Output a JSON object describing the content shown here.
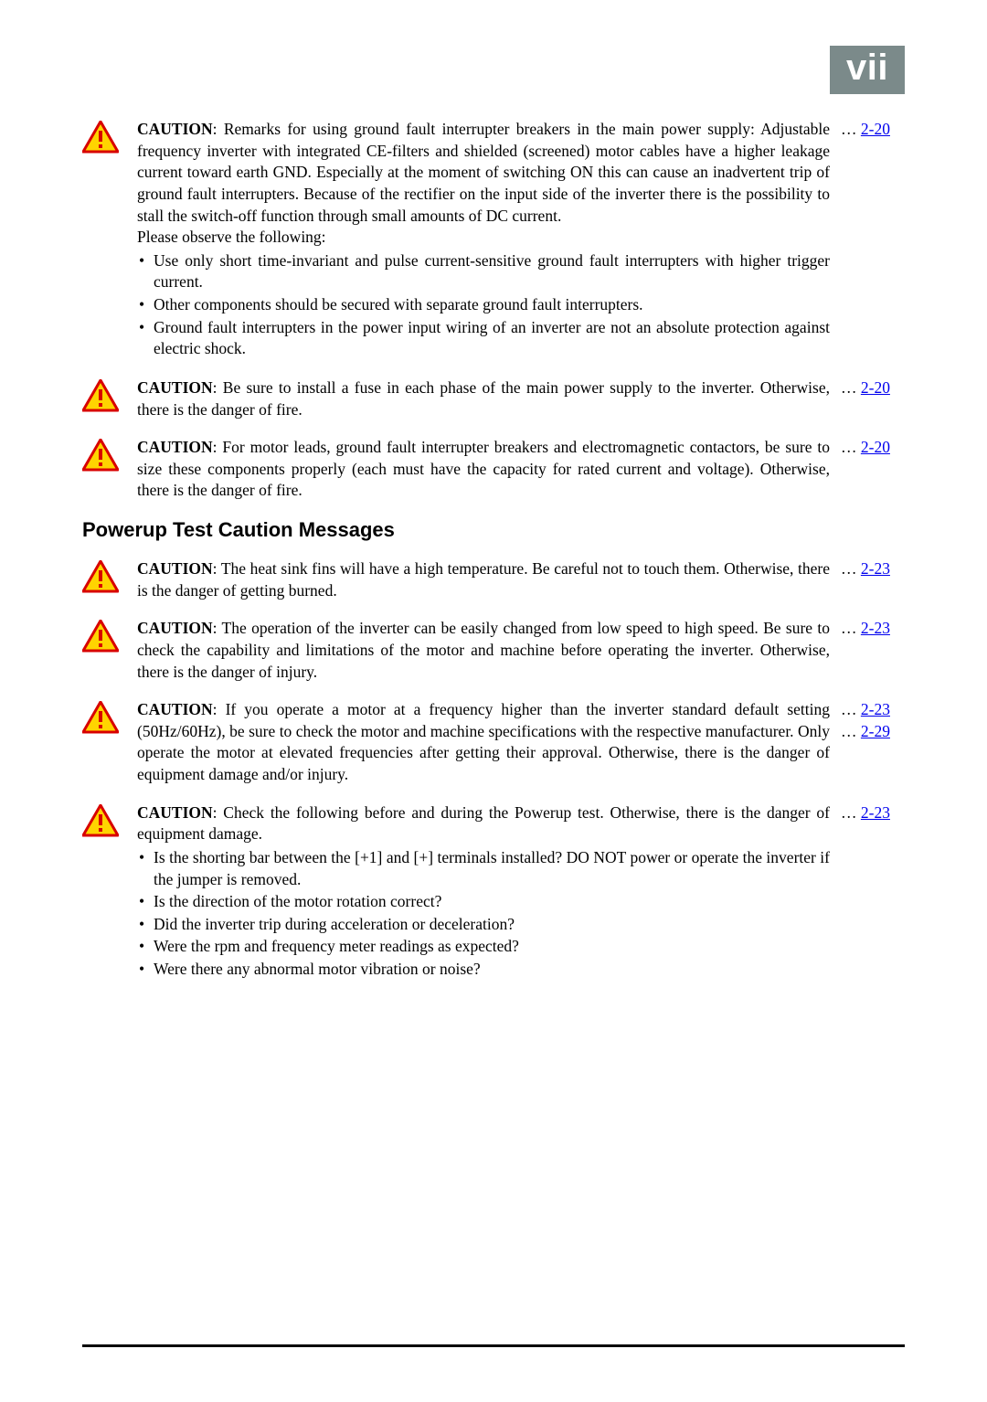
{
  "page_label": "vii",
  "link_color": "#0000ee",
  "tab_bg": "#7b8a8a",
  "cautions_a": [
    {
      "lead": "CAUTION",
      "body": ": Remarks for using ground fault interrupter breakers in the main power supply: Adjustable frequency inverter with integrated CE-filters and shielded (screened) motor cables have a higher leakage current toward earth GND. Especially at the moment of switching ON this can cause an inadvertent trip of ground fault interrupters. Because of the rectifier on the input side of the inverter there is the possibility to stall the switch-off function through small amounts of DC current.",
      "follow": "Please observe the following:",
      "bullets": [
        "Use only short time-invariant and pulse current-sensitive ground fault interrupters with higher trigger current.",
        "Other components should be secured with separate ground fault interrupters.",
        "Ground fault interrupters in the power input wiring of an inverter are not an absolute protection against electric shock."
      ],
      "refs": [
        "2-20"
      ]
    },
    {
      "lead": "CAUTION",
      "body": ": Be sure to install a fuse in each phase of the main power supply to the inverter. Otherwise, there is the danger of fire.",
      "refs": [
        "2-20"
      ]
    },
    {
      "lead": "CAUTION",
      "body": ": For motor leads, ground fault interrupter breakers and electromagnetic contactors, be sure to size these components properly (each must have the capacity for rated current and voltage). Otherwise, there is the danger of fire.",
      "refs": [
        "2-20"
      ]
    }
  ],
  "heading": "Powerup Test Caution Messages",
  "cautions_b": [
    {
      "lead": "CAUTION",
      "body": ": The heat sink fins will have a high temperature. Be careful not to touch them. Otherwise, there is the danger of getting burned.",
      "refs": [
        "2-23"
      ]
    },
    {
      "lead": "CAUTION",
      "body": ": The operation of the inverter can be easily changed from low speed to high speed. Be sure to check the capability and limitations of the motor and machine before operating the inverter. Otherwise, there is the danger of injury.",
      "refs": [
        "2-23"
      ]
    },
    {
      "lead": "CAUTION",
      "body": ": If you operate a motor at a frequency higher than the inverter standard default setting (50Hz/60Hz), be sure to check the motor and machine specifications with the respective manufacturer. Only operate the motor at elevated frequencies after getting their approval. Otherwise, there is the danger of equipment damage and/or injury.",
      "refs": [
        "2-23",
        "2-29"
      ]
    },
    {
      "lead": "CAUTION",
      "body": ": Check the following before and during the Powerup test. Otherwise, there is the danger of equipment damage.",
      "bullets": [
        "Is the shorting bar between the [+1] and [+] terminals installed? DO NOT power or operate the inverter if the jumper is removed.",
        "Is the direction of the motor rotation correct?",
        "Did the inverter trip during acceleration or deceleration?",
        "Were the rpm and frequency meter readings as expected?",
        "Were there any abnormal motor vibration or noise?"
      ],
      "refs": [
        "2-23"
      ]
    }
  ]
}
